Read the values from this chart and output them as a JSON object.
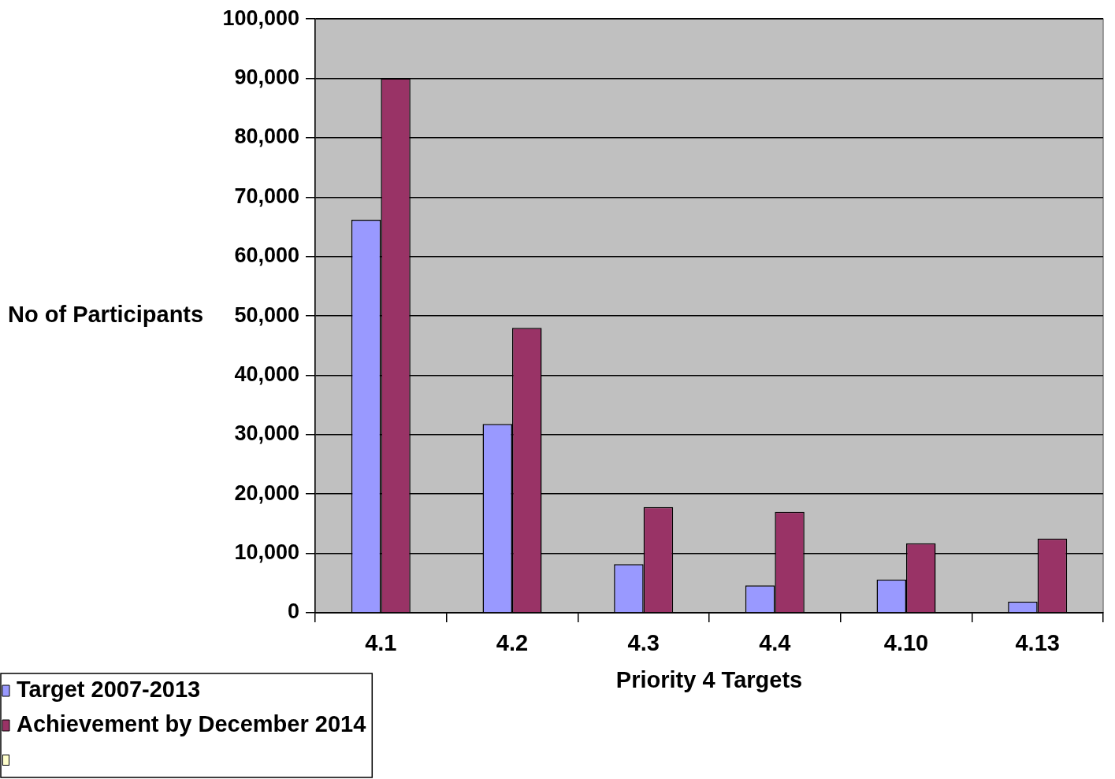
{
  "chart_data": {
    "type": "bar",
    "categories": [
      "4.1",
      "4.2",
      "4.3",
      "4.4",
      "4.10",
      "4.13"
    ],
    "xlabel": "Priority 4 Targets",
    "ylabel": "No of Participants",
    "ylim": [
      0,
      100000
    ],
    "yticks": [
      0,
      {
        "value": 10000,
        "label": "10,000"
      },
      {
        "value": 20000,
        "label": "20,000"
      },
      {
        "value": 30000,
        "label": "30,000"
      },
      {
        "value": 40000,
        "label": "40,000"
      },
      {
        "value": 50000,
        "label": "50,000"
      },
      {
        "value": 60000,
        "label": "60,000"
      },
      {
        "value": 70000,
        "label": "70,000"
      },
      {
        "value": 80000,
        "label": "80,000"
      },
      {
        "value": 90000,
        "label": "90,000"
      },
      {
        "value": 100000,
        "label": "100,000"
      }
    ],
    "grid": "y",
    "legend": "bottom left",
    "series": [
      {
        "name": "Target 2007-2013",
        "color": "#9999ff",
        "values": [
          66200,
          31800,
          8200,
          4600,
          5600,
          1900
        ]
      },
      {
        "name": "Achievement by December 2014",
        "color": "#993366",
        "values": [
          90000,
          48000,
          17800,
          17000,
          11700,
          12500
        ]
      }
    ]
  }
}
